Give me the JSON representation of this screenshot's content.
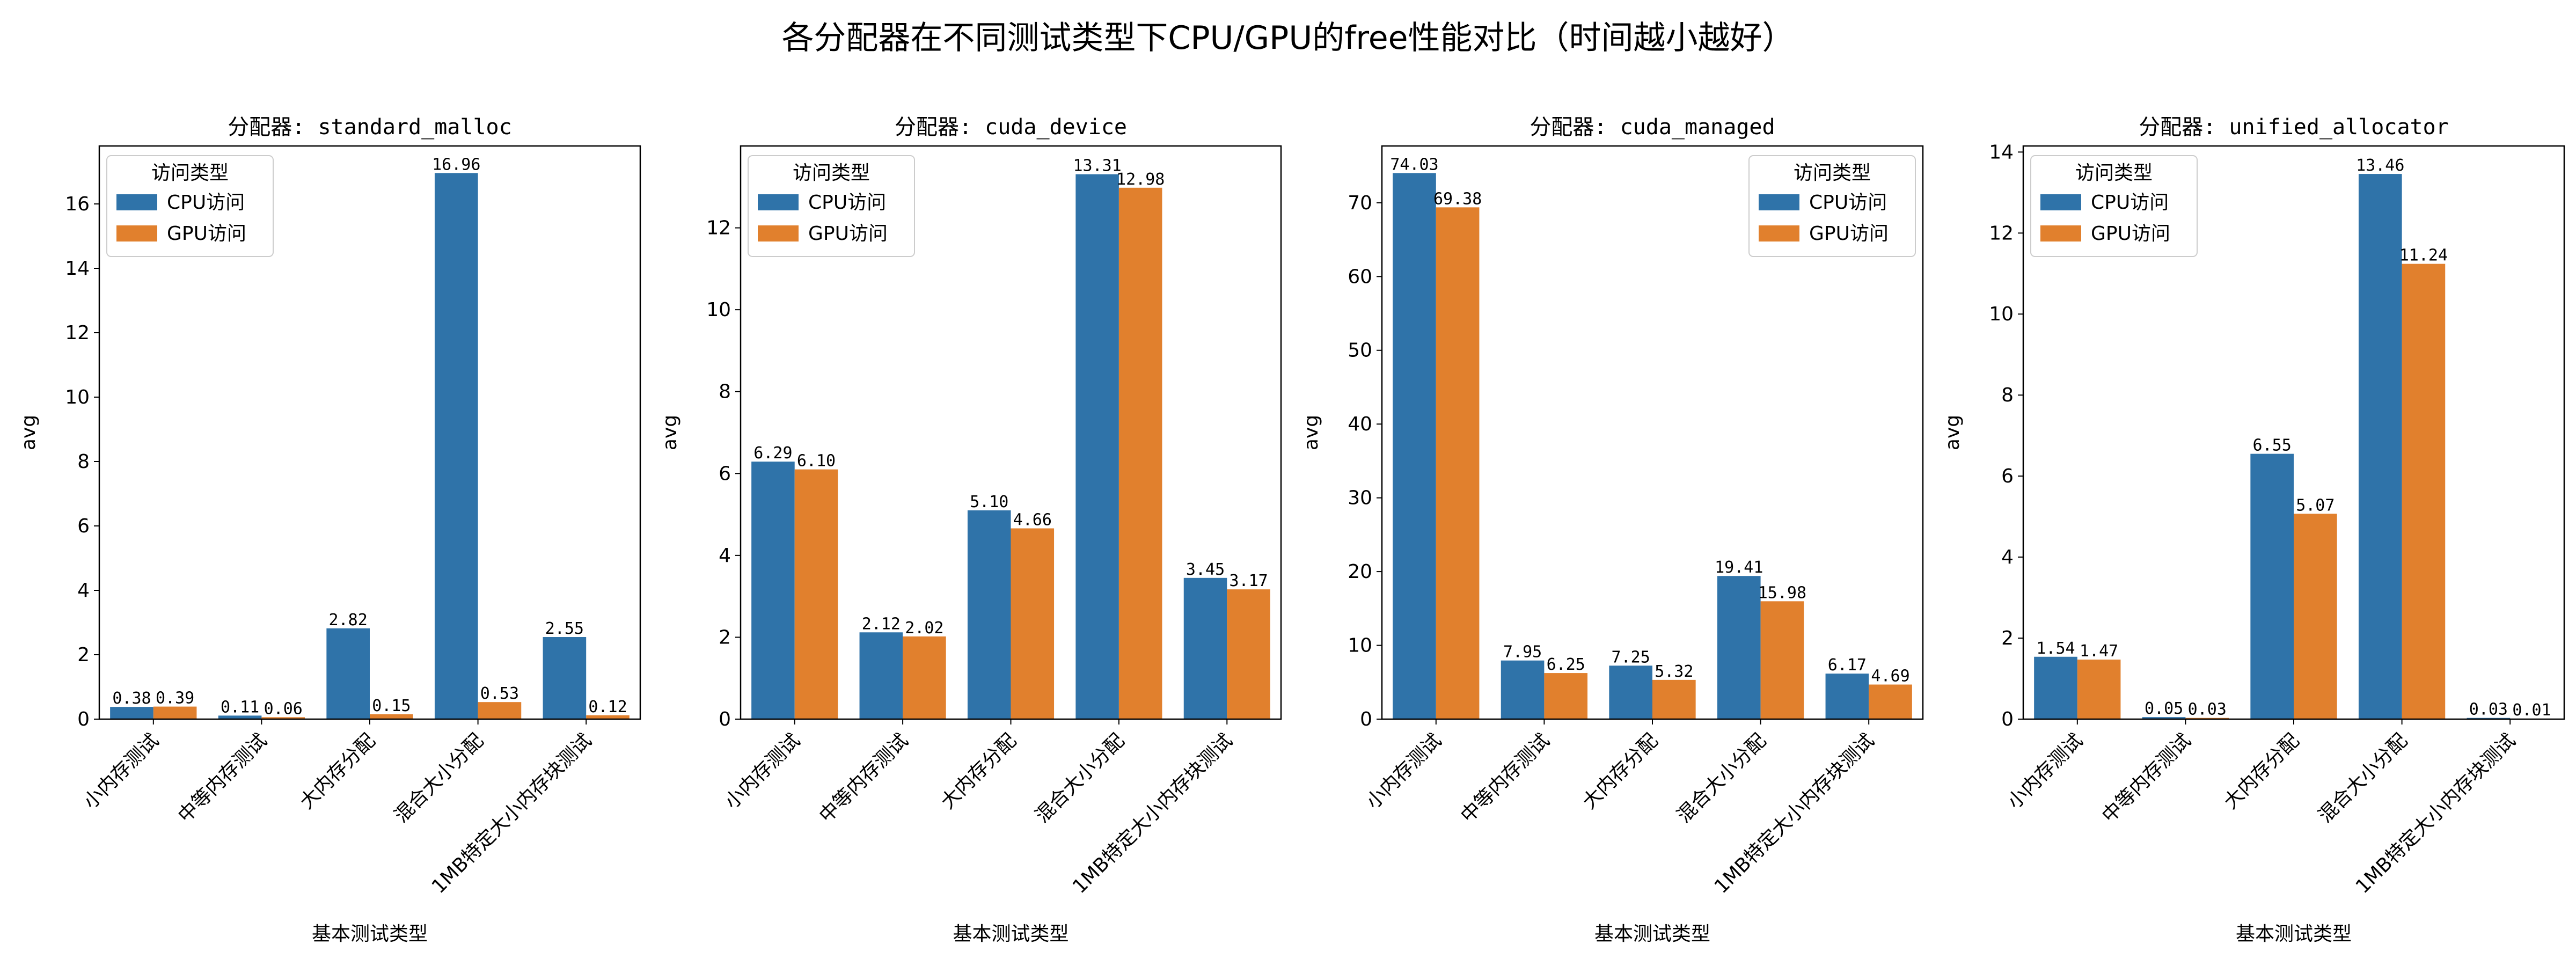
{
  "suptitle": "各分配器在不同测试类型下CPU/GPU的free性能对比（时间越小越好）",
  "colors": {
    "cpu": "#2f73a9",
    "gpu": "#e1802d"
  },
  "chart_data": [
    {
      "type": "bar",
      "title": "分配器: standard_malloc",
      "xlabel": "基本测试类型",
      "ylabel": "avg",
      "categories": [
        "小内存测试",
        "中等内存测试",
        "大内存分配",
        "混合大小分配",
        "1MB特定大小内存块测试"
      ],
      "series": [
        {
          "name": "CPU访问",
          "values": [
            0.38,
            0.11,
            2.82,
            16.96,
            2.55
          ],
          "labels": [
            "0.38",
            "0.11",
            "2.82",
            "16.96",
            "2.55"
          ]
        },
        {
          "name": "GPU访问",
          "values": [
            0.39,
            0.06,
            0.15,
            0.53,
            0.12
          ],
          "labels": [
            "0.39",
            "0.06",
            "0.15",
            "0.53",
            "0.12"
          ]
        }
      ],
      "ylim": [
        0,
        17.8
      ],
      "yticks": [
        0,
        2,
        4,
        6,
        8,
        10,
        12,
        14,
        16
      ],
      "legend_title": "访问类型",
      "legend_loc": "upper-left"
    },
    {
      "type": "bar",
      "title": "分配器: cuda_device",
      "xlabel": "基本测试类型",
      "ylabel": "avg",
      "categories": [
        "小内存测试",
        "中等内存测试",
        "大内存分配",
        "混合大小分配",
        "1MB特定大小内存块测试"
      ],
      "series": [
        {
          "name": "CPU访问",
          "values": [
            6.29,
            2.12,
            5.1,
            13.31,
            3.45
          ],
          "labels": [
            "6.29",
            "2.12",
            "5.10",
            "13.31",
            "3.45"
          ]
        },
        {
          "name": "GPU访问",
          "values": [
            6.1,
            2.02,
            4.66,
            12.98,
            3.17
          ],
          "labels": [
            "6.10",
            "2.02",
            "4.66",
            "12.98",
            "3.17"
          ]
        }
      ],
      "ylim": [
        0,
        14.0
      ],
      "yticks": [
        0,
        2,
        4,
        6,
        8,
        10,
        12
      ],
      "legend_title": "访问类型",
      "legend_loc": "upper-left"
    },
    {
      "type": "bar",
      "title": "分配器: cuda_managed",
      "xlabel": "基本测试类型",
      "ylabel": "avg",
      "categories": [
        "小内存测试",
        "中等内存测试",
        "大内存分配",
        "混合大小分配",
        "1MB特定大小内存块测试"
      ],
      "series": [
        {
          "name": "CPU访问",
          "values": [
            74.03,
            7.95,
            7.25,
            19.41,
            6.17
          ],
          "labels": [
            "74.03",
            "7.95",
            "7.25",
            "19.41",
            "6.17"
          ]
        },
        {
          "name": "GPU访问",
          "values": [
            69.38,
            6.25,
            5.32,
            15.98,
            4.69
          ],
          "labels": [
            "69.38",
            "6.25",
            "5.32",
            "15.98",
            "4.69"
          ]
        }
      ],
      "ylim": [
        0,
        77.7
      ],
      "yticks": [
        0,
        10,
        20,
        30,
        40,
        50,
        60,
        70
      ],
      "legend_title": "访问类型",
      "legend_loc": "upper-right"
    },
    {
      "type": "bar",
      "title": "分配器: unified_allocator",
      "xlabel": "基本测试类型",
      "ylabel": "avg",
      "categories": [
        "小内存测试",
        "中等内存测试",
        "大内存分配",
        "混合大小分配",
        "1MB特定大小内存块测试"
      ],
      "series": [
        {
          "name": "CPU访问",
          "values": [
            1.54,
            0.05,
            6.55,
            13.46,
            0.03
          ],
          "labels": [
            "1.54",
            "0.05",
            "6.55",
            "13.46",
            "0.03"
          ]
        },
        {
          "name": "GPU访问",
          "values": [
            1.47,
            0.03,
            5.07,
            11.24,
            0.01
          ],
          "labels": [
            "1.47",
            "0.03",
            "5.07",
            "11.24",
            "0.01"
          ]
        }
      ],
      "ylim": [
        0,
        14.15
      ],
      "yticks": [
        0,
        2,
        4,
        6,
        8,
        10,
        12,
        14
      ],
      "legend_title": "访问类型",
      "legend_loc": "upper-left"
    }
  ]
}
